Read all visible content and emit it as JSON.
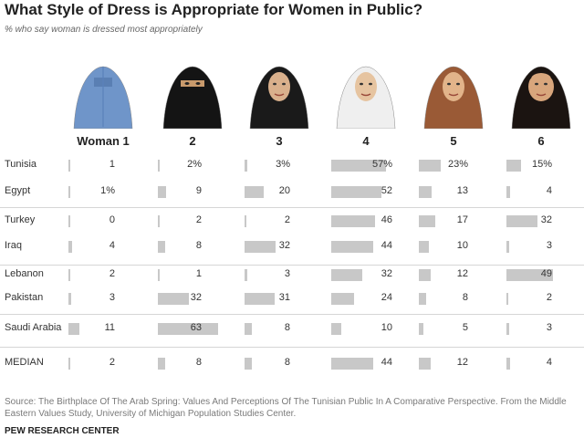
{
  "title": "What Style of Dress is Appropriate for Women in Public?",
  "subtitle": "% who say woman is dressed most appropriately",
  "source": "Source: The Birthplace Of The Arab Spring: Values And Perceptions Of The Tunisian Public In A Comparative Perspective. From the Middle Eastern Values Study, University of Michigan Population Studies Center.",
  "credit": "PEW RESEARCH CENTER",
  "images": [
    {
      "icon": "woman-1-burqa-icon",
      "cloth": "#6f95c9",
      "skin": "#6f95c9",
      "bg": "#ffffff"
    },
    {
      "icon": "woman-2-niqab-icon",
      "cloth": "#141414",
      "skin": "#c89a6c",
      "bg": "#ffffff"
    },
    {
      "icon": "woman-3-chador-icon",
      "cloth": "#1a1a1a",
      "skin": "#d9b08c",
      "bg": "#ffffff"
    },
    {
      "icon": "woman-4-white-hijab-icon",
      "cloth": "#efefef",
      "skin": "#e6c4a0",
      "bg": "#ffffff"
    },
    {
      "icon": "woman-5-loose-headscarf-icon",
      "cloth": "#9a5a36",
      "skin": "#e2b48a",
      "bg": "#ffffff"
    },
    {
      "icon": "woman-6-uncovered-icon",
      "cloth": "#1b1411",
      "skin": "#d9a67c",
      "bg": "#ffffff"
    }
  ],
  "chart_data": {
    "type": "table",
    "columns": [
      "Woman 1",
      "2",
      "3",
      "4",
      "5",
      "6"
    ],
    "rows": [
      {
        "label": "Tunisia",
        "values": [
          1,
          2,
          3,
          57,
          23,
          15
        ],
        "display": [
          "1",
          "2%",
          "3%",
          "57%",
          "23%",
          "15%"
        ]
      },
      {
        "label": "Egypt",
        "values": [
          1,
          9,
          20,
          52,
          13,
          4
        ],
        "display": [
          "1%",
          "9",
          "20",
          "52",
          "13",
          "4"
        ]
      },
      {
        "label": "Turkey",
        "values": [
          0,
          2,
          2,
          46,
          17,
          32
        ],
        "display": [
          "0",
          "2",
          "2",
          "46",
          "17",
          "32"
        ]
      },
      {
        "label": "Iraq",
        "values": [
          4,
          8,
          32,
          44,
          10,
          3
        ],
        "display": [
          "4",
          "8",
          "32",
          "44",
          "10",
          "3"
        ]
      },
      {
        "label": "Lebanon",
        "values": [
          2,
          1,
          3,
          32,
          12,
          49
        ],
        "display": [
          "2",
          "1",
          "3",
          "32",
          "12",
          "49"
        ]
      },
      {
        "label": "Pakistan",
        "values": [
          3,
          32,
          31,
          24,
          8,
          2
        ],
        "display": [
          "3",
          "32",
          "31",
          "24",
          "8",
          "2"
        ]
      },
      {
        "label": "Saudi Arabia",
        "values": [
          11,
          63,
          8,
          10,
          5,
          3
        ],
        "display": [
          "11",
          "63",
          "8",
          "10",
          "5",
          "3"
        ]
      },
      {
        "label": "MEDIAN",
        "values": [
          2,
          8,
          8,
          44,
          12,
          4
        ],
        "display": [
          "2",
          "8",
          "8",
          "44",
          "12",
          "4"
        ]
      }
    ],
    "bar_color": "#c8c8c8"
  }
}
